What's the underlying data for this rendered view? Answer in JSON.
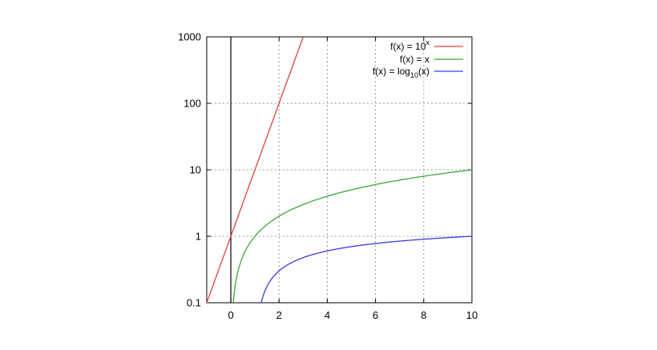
{
  "chart_data": {
    "type": "line",
    "xlim": [
      -1,
      10
    ],
    "ylim": [
      0.1,
      1000
    ],
    "yscale": "log",
    "grid": true,
    "legend_position": "top-right",
    "x_ticks": [
      0,
      2,
      4,
      6,
      8,
      10
    ],
    "x_tick_labels": [
      "0",
      "2",
      "4",
      "6",
      "8",
      "10"
    ],
    "y_ticks": [
      0.1,
      1,
      10,
      100,
      1000
    ],
    "y_tick_labels": [
      "0.1",
      "1",
      "10",
      "100",
      "1000"
    ],
    "series": [
      {
        "name": "f(x) = 10^x",
        "legend_main": "f(x) = 10",
        "legend_sup": "x",
        "color": "#e0433a",
        "x": [
          -1,
          -0.5,
          0,
          0.5,
          1,
          1.5,
          2,
          2.5,
          3
        ],
        "y": [
          0.1,
          0.316,
          1,
          3.16,
          10,
          31.6,
          100,
          316,
          1000
        ]
      },
      {
        "name": "f(x) = x",
        "legend_main": "f(x) = x",
        "color": "#3aa83a",
        "x": [
          0.1,
          0.2,
          0.5,
          1,
          2,
          3,
          4,
          5,
          6,
          7,
          8,
          9,
          10
        ],
        "y": [
          0.1,
          0.2,
          0.5,
          1,
          2,
          3,
          4,
          5,
          6,
          7,
          8,
          9,
          10
        ]
      },
      {
        "name": "f(x) = log10(x)",
        "legend_main": "f(x) = log",
        "legend_sub": "10",
        "legend_tail": "(x)",
        "color": "#3a3ae0",
        "x": [
          1.259,
          1.5,
          2,
          3,
          4,
          5,
          6,
          7,
          8,
          9,
          10
        ],
        "y": [
          0.1,
          0.176,
          0.301,
          0.477,
          0.602,
          0.699,
          0.778,
          0.845,
          0.903,
          0.954,
          1
        ]
      }
    ]
  }
}
